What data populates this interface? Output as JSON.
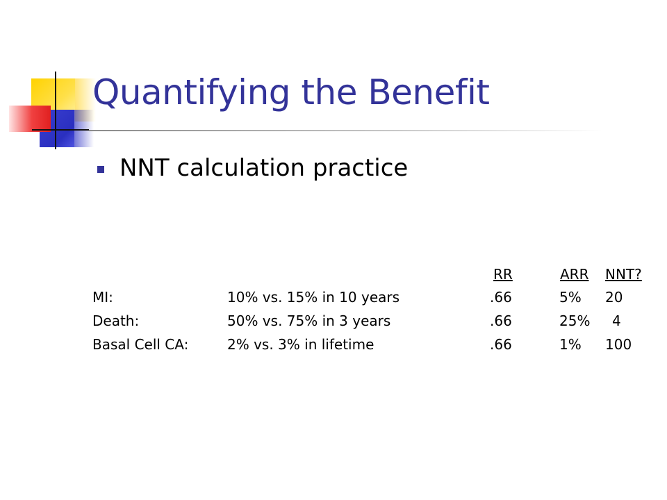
{
  "slide": {
    "title": "Quantifying the Benefit",
    "bullet": "NNT calculation practice"
  },
  "table": {
    "headers": [
      "RR",
      "ARR",
      "NNT?"
    ],
    "rows": [
      {
        "label": "MI:",
        "description": "10% vs. 15% in 10 years",
        "rr": ".66",
        "arr": "5%",
        "nnt": "20"
      },
      {
        "label": "Death:",
        "description": "50% vs. 75% in 3 years",
        "rr": ".66",
        "arr": "25%",
        "nnt": "4"
      },
      {
        "label": "Basal Cell CA:",
        "description": "2% vs. 3% in lifetime",
        "rr": ".66",
        "arr": "1%",
        "nnt": "100"
      }
    ]
  },
  "colors": {
    "title": "#333399",
    "bullet": "#333399",
    "text": "#000000"
  }
}
